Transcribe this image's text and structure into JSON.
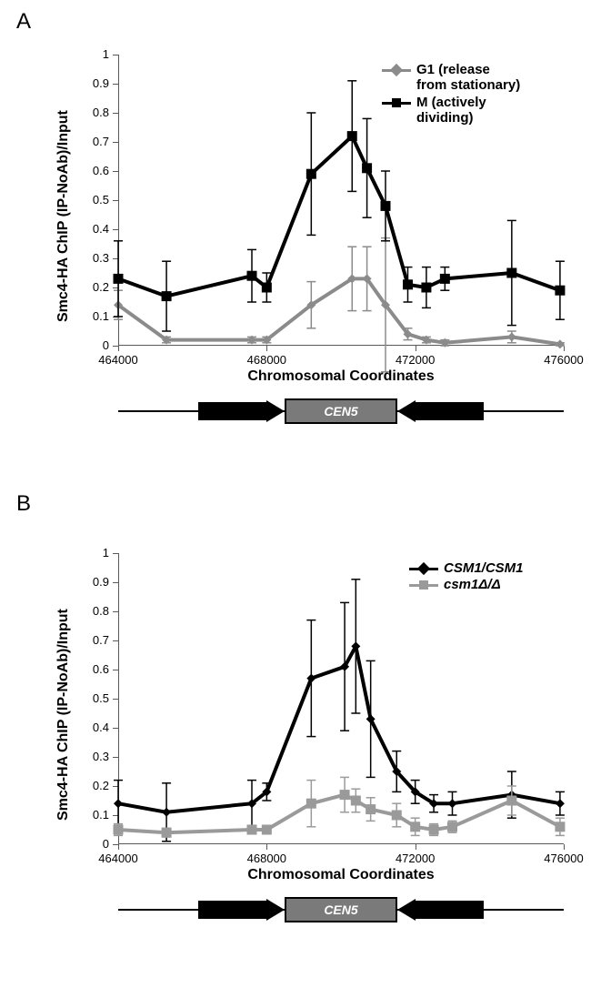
{
  "panelA": {
    "label": "A",
    "yLabel": "Smc4-HA ChIP (IP-NoAb)/Input",
    "xLabel": "Chromosomal Coordinates",
    "xlim": [
      464000,
      476000
    ],
    "ylim": [
      0,
      1
    ],
    "xticks": [
      464000,
      468000,
      472000,
      476000
    ],
    "yticks": [
      0,
      0.1,
      0.2,
      0.3,
      0.4,
      0.5,
      0.6,
      0.7,
      0.8,
      0.9,
      1
    ],
    "geneLabel": "CEN5",
    "series": [
      {
        "name": "G1 (release\nfrom stationary)",
        "color": "#8b8b8b",
        "marker": "diamond",
        "markerSize": 10,
        "lineWidth": 4,
        "x": [
          464000,
          465300,
          467600,
          468000,
          469200,
          470300,
          470700,
          471200,
          471800,
          472300,
          472800,
          474600,
          475900
        ],
        "y": [
          0.14,
          0.02,
          0.02,
          0.02,
          0.14,
          0.23,
          0.23,
          0.14,
          0.04,
          0.02,
          0.01,
          0.03,
          0.005
        ],
        "err": [
          0.05,
          0.01,
          0.01,
          0.01,
          0.08,
          0.11,
          0.11,
          0.23,
          0.02,
          0.01,
          0.01,
          0.02,
          0.005
        ]
      },
      {
        "name": "M (actively\ndividing)",
        "color": "#000000",
        "marker": "square",
        "markerSize": 11,
        "lineWidth": 4,
        "x": [
          464000,
          465300,
          467600,
          468000,
          469200,
          470300,
          470700,
          471200,
          471800,
          472300,
          472800,
          474600,
          475900
        ],
        "y": [
          0.23,
          0.17,
          0.24,
          0.2,
          0.59,
          0.72,
          0.61,
          0.48,
          0.21,
          0.2,
          0.23,
          0.25,
          0.19
        ],
        "err": [
          0.13,
          0.12,
          0.09,
          0.05,
          0.21,
          0.19,
          0.17,
          0.12,
          0.06,
          0.07,
          0.04,
          0.18,
          0.1
        ]
      }
    ]
  },
  "panelB": {
    "label": "B",
    "yLabel": "Smc4-HA ChIP (IP-NoAb)/Input",
    "xLabel": "Chromosomal Coordinates",
    "xlim": [
      464000,
      476000
    ],
    "ylim": [
      0,
      1
    ],
    "xticks": [
      464000,
      468000,
      472000,
      476000
    ],
    "yticks": [
      0,
      0.1,
      0.2,
      0.3,
      0.4,
      0.5,
      0.6,
      0.7,
      0.8,
      0.9,
      1
    ],
    "geneLabel": "CEN5",
    "series": [
      {
        "name": "CSM1/CSM1",
        "italic": true,
        "color": "#000000",
        "marker": "diamond",
        "markerSize": 10,
        "lineWidth": 4,
        "x": [
          464000,
          465300,
          467600,
          468000,
          469200,
          470100,
          470400,
          470800,
          471500,
          472000,
          472500,
          473000,
          474600,
          475900
        ],
        "y": [
          0.14,
          0.11,
          0.14,
          0.18,
          0.57,
          0.61,
          0.68,
          0.43,
          0.25,
          0.18,
          0.14,
          0.14,
          0.17,
          0.14
        ],
        "err": [
          0.08,
          0.1,
          0.08,
          0.03,
          0.2,
          0.22,
          0.23,
          0.2,
          0.07,
          0.04,
          0.03,
          0.04,
          0.08,
          0.04
        ]
      },
      {
        "name": "csm1Δ/Δ",
        "italic": true,
        "color": "#9a9a9a",
        "marker": "square",
        "markerSize": 11,
        "lineWidth": 4,
        "x": [
          464000,
          465300,
          467600,
          468000,
          469200,
          470100,
          470400,
          470800,
          471500,
          472000,
          472500,
          473000,
          474600,
          475900
        ],
        "y": [
          0.05,
          0.04,
          0.05,
          0.05,
          0.14,
          0.17,
          0.15,
          0.12,
          0.1,
          0.06,
          0.05,
          0.06,
          0.15,
          0.06
        ],
        "err": [
          0.02,
          0.015,
          0.015,
          0.01,
          0.08,
          0.06,
          0.04,
          0.04,
          0.04,
          0.03,
          0.02,
          0.02,
          0.05,
          0.03
        ]
      }
    ]
  },
  "colors": {
    "background": "#ffffff",
    "axis": "#595959",
    "text": "#000000",
    "geneBox": "#7a7a7a"
  }
}
